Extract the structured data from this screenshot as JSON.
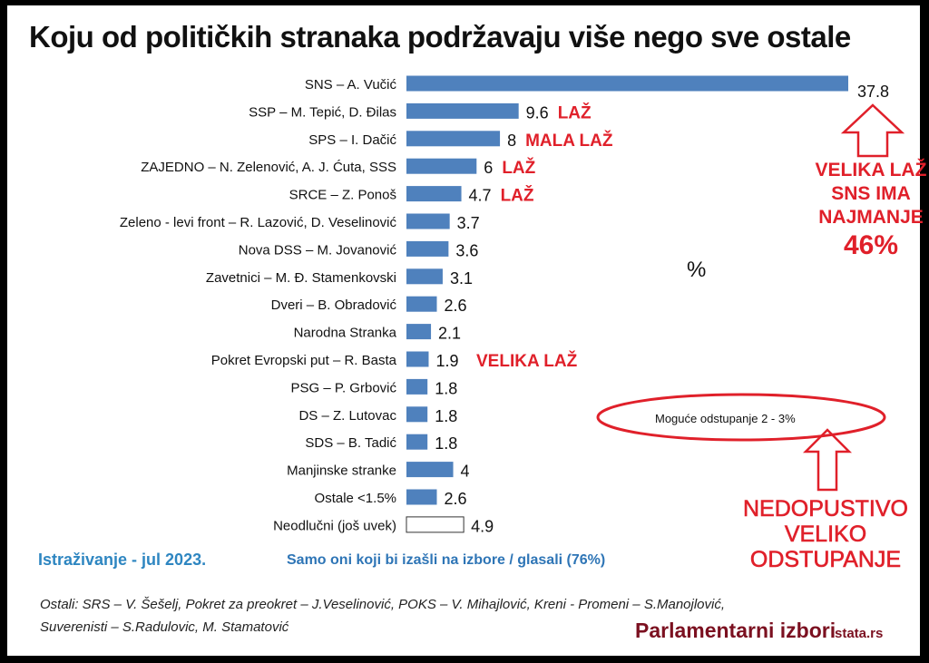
{
  "chart_data": {
    "type": "bar",
    "orientation": "horizontal",
    "title": "Koju od političkih stranaka podržavaju više nego sve ostale",
    "unit_label": "%",
    "categories": [
      "SNS – A. Vučić",
      "SSP – M. Tepić, D. Đilas",
      "SPS – I. Dačić",
      "ZAJEDNO – N. Zelenović, A. J. Ćuta, SSS",
      "SRCE – Z. Ponoš",
      "Zeleno - levi front – R. Lazović, D. Veselinović",
      "Nova DSS – M. Jovanović",
      "Zavetnici – M. Đ. Stamenkovski",
      "Dveri – B. Obradović",
      "Narodna Stranka",
      "Pokret Evropski put – R. Basta",
      "PSG – P. Grbović",
      "DS – Z. Lutovac",
      "SDS – B. Tadić",
      "Manjinske stranke",
      "Ostale <1.5%",
      "Neodlučni (još uvek)"
    ],
    "values": [
      37.8,
      9.6,
      8,
      6,
      4.7,
      3.7,
      3.6,
      3.1,
      2.6,
      2.1,
      1.9,
      1.8,
      1.8,
      1.8,
      4,
      2.6,
      4.9
    ],
    "value_labels": [
      "37.8",
      "9.6",
      "8",
      "6",
      "4.7",
      "3.7",
      "3.6",
      "3.1",
      "2.6",
      "2.1",
      "1.9",
      "1.8",
      "1.8",
      "1.8",
      "4",
      "2.6",
      "4.9"
    ],
    "bar_color": "#4f81bd",
    "undecided_color": "#ffffff",
    "xlim": [
      0,
      37.8
    ]
  },
  "annotations": {
    "row_notes": [
      {
        "row": 1,
        "text": "LAŽ"
      },
      {
        "row": 2,
        "text": "MALA LAŽ"
      },
      {
        "row": 3,
        "text": "LAŽ"
      },
      {
        "row": 4,
        "text": "LAŽ"
      },
      {
        "row": 10,
        "text": "VELIKA LAŽ"
      }
    ],
    "sns_note": [
      "VELIKA LAŽ",
      "SNS IMA",
      "NAJMANJE"
    ],
    "sns_pct": "46%",
    "margin_note": "Moguće odstupanje 2 - 3%",
    "margin_comment": [
      "NEDOPUSTIVO",
      "VELIKO",
      "ODSTUPANJE"
    ],
    "accent_red": "#e0202a"
  },
  "footer": {
    "survey": "Istraživanje - jul 2023.",
    "sample": "Samo oni koji bi izašli na izbore / glasali (76%)",
    "others": "Ostali: SRS – V. Šešelj, Pokret za preokret – J.Veselinović, POKS – V. Mihajlović, Kreni - Promeni – S.Manojlović,",
    "others2": "Suverenisti – S.Radulovic, M. Stamatović",
    "election": "Parlamentarni izbori",
    "source": "stata.rs"
  }
}
